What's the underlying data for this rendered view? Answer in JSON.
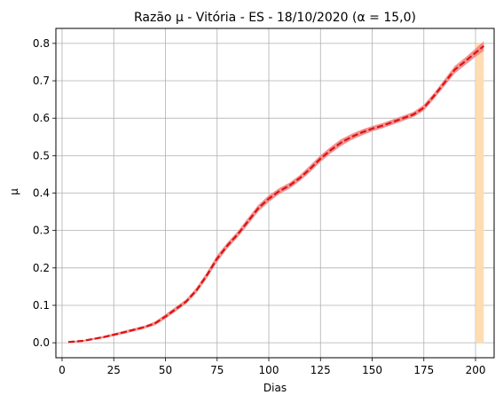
{
  "chart_data": {
    "type": "line",
    "title": "Razão μ - Vitória - ES - 18/10/2020 (α = 15,0)",
    "xlabel": "Dias",
    "ylabel": "μ",
    "xlim": [
      -3,
      209
    ],
    "ylim": [
      -0.04,
      0.84
    ],
    "x_ticks": [
      0,
      25,
      50,
      75,
      100,
      125,
      150,
      175,
      200
    ],
    "x_tick_labels": [
      "0",
      "25",
      "50",
      "75",
      "100",
      "125",
      "150",
      "175",
      "200"
    ],
    "y_ticks": [
      0.0,
      0.1,
      0.2,
      0.3,
      0.4,
      0.5,
      0.6,
      0.7,
      0.8
    ],
    "y_tick_labels": [
      "0.0",
      "0.1",
      "0.2",
      "0.3",
      "0.4",
      "0.5",
      "0.6",
      "0.7",
      "0.8"
    ],
    "grid": true,
    "highlight_span": {
      "x0": 200,
      "x1": 204,
      "color": "#ffdcb2"
    },
    "band_color": "#f08080",
    "line_color": "#e01010",
    "series": [
      {
        "x": [
          3,
          10,
          20,
          30,
          40,
          45,
          50,
          55,
          60,
          65,
          70,
          75,
          80,
          85,
          90,
          95,
          100,
          105,
          110,
          115,
          120,
          125,
          130,
          135,
          140,
          145,
          150,
          155,
          160,
          165,
          170,
          175,
          180,
          185,
          190,
          195,
          200,
          204
        ],
        "y": [
          0.002,
          0.005,
          0.015,
          0.028,
          0.042,
          0.052,
          0.07,
          0.09,
          0.11,
          0.14,
          0.18,
          0.225,
          0.26,
          0.29,
          0.325,
          0.36,
          0.385,
          0.405,
          0.42,
          0.44,
          0.465,
          0.492,
          0.515,
          0.535,
          0.55,
          0.562,
          0.572,
          0.58,
          0.59,
          0.6,
          0.61,
          0.628,
          0.66,
          0.695,
          0.73,
          0.752,
          0.775,
          0.793
        ],
        "lower": [
          0.0,
          0.003,
          0.012,
          0.024,
          0.038,
          0.047,
          0.064,
          0.084,
          0.104,
          0.133,
          0.172,
          0.216,
          0.252,
          0.282,
          0.316,
          0.351,
          0.376,
          0.397,
          0.412,
          0.432,
          0.456,
          0.483,
          0.506,
          0.526,
          0.542,
          0.554,
          0.565,
          0.573,
          0.583,
          0.593,
          0.603,
          0.62,
          0.652,
          0.686,
          0.72,
          0.742,
          0.764,
          0.78
        ],
        "upper": [
          0.004,
          0.007,
          0.018,
          0.032,
          0.046,
          0.057,
          0.076,
          0.096,
          0.116,
          0.147,
          0.188,
          0.234,
          0.268,
          0.298,
          0.334,
          0.369,
          0.394,
          0.413,
          0.428,
          0.448,
          0.474,
          0.501,
          0.524,
          0.544,
          0.558,
          0.57,
          0.579,
          0.587,
          0.597,
          0.607,
          0.617,
          0.636,
          0.668,
          0.704,
          0.74,
          0.762,
          0.786,
          0.806
        ]
      }
    ]
  }
}
